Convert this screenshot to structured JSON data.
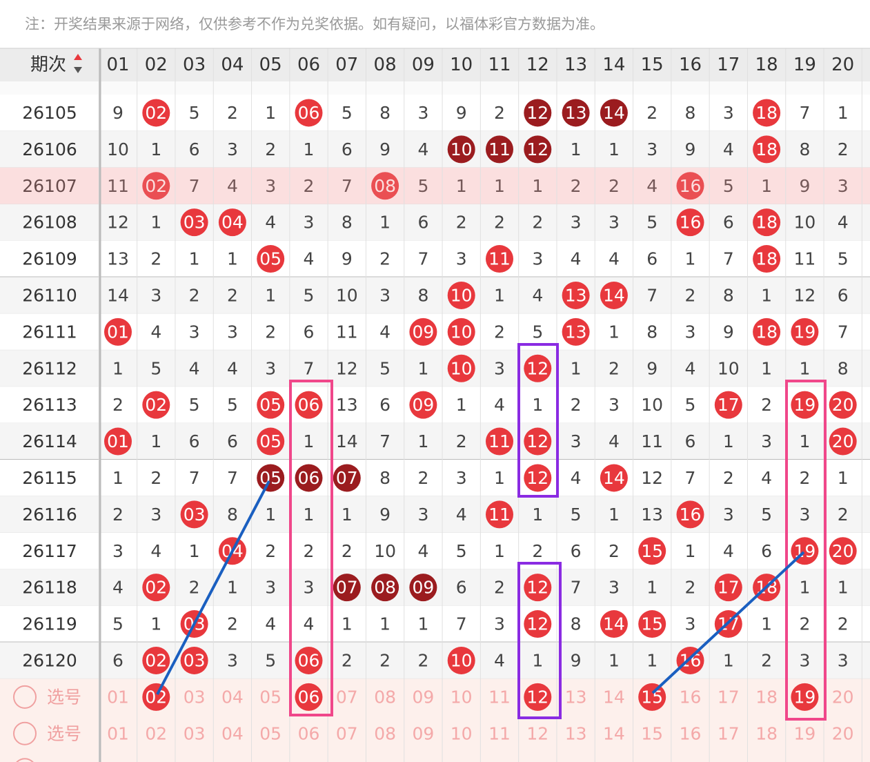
{
  "note": "注：开奖结果来源于网络，仅供参考不作为兑奖依据。如有疑问，以福体彩官方数据为准。",
  "header": {
    "issue": "期次",
    "columns": [
      "01",
      "02",
      "03",
      "04",
      "05",
      "06",
      "07",
      "08",
      "09",
      "10",
      "11",
      "12",
      "13",
      "14",
      "15",
      "16",
      "17",
      "18",
      "19",
      "20"
    ]
  },
  "rows": [
    {
      "issue": "26105",
      "cells": [
        "9",
        {
          "text": "02",
          "tone": "red"
        },
        "5",
        "2",
        "1",
        {
          "text": "06",
          "tone": "red"
        },
        "5",
        "8",
        "3",
        "9",
        "2",
        {
          "text": "12",
          "tone": "dark"
        },
        {
          "text": "13",
          "tone": "dark"
        },
        {
          "text": "14",
          "tone": "dark"
        },
        "2",
        "8",
        "3",
        {
          "text": "18",
          "tone": "red"
        },
        "7",
        "1"
      ]
    },
    {
      "issue": "26106",
      "cells": [
        "10",
        "1",
        "6",
        "3",
        "2",
        "1",
        "6",
        "9",
        "4",
        {
          "text": "10",
          "tone": "dark"
        },
        {
          "text": "11",
          "tone": "dark"
        },
        {
          "text": "12",
          "tone": "dark"
        },
        "1",
        "1",
        "3",
        "9",
        "4",
        {
          "text": "18",
          "tone": "red"
        },
        "8",
        "2"
      ]
    },
    {
      "issue": "26107",
      "highlighted": true,
      "cells": [
        "11",
        {
          "text": "02",
          "tone": "red"
        },
        "7",
        "4",
        "3",
        "2",
        "7",
        {
          "text": "08",
          "tone": "red"
        },
        "5",
        "1",
        "1",
        "1",
        "2",
        "2",
        "4",
        {
          "text": "16",
          "tone": "red"
        },
        "5",
        "1",
        "9",
        "3"
      ]
    },
    {
      "issue": "26108",
      "cells": [
        "12",
        "1",
        {
          "text": "03",
          "tone": "red"
        },
        {
          "text": "04",
          "tone": "red"
        },
        "4",
        "3",
        "8",
        "1",
        "6",
        "2",
        "2",
        "2",
        "3",
        "3",
        "5",
        {
          "text": "16",
          "tone": "red"
        },
        "6",
        {
          "text": "18",
          "tone": "red"
        },
        "10",
        "4"
      ]
    },
    {
      "issue": "26109",
      "cells": [
        "13",
        "2",
        "1",
        "1",
        {
          "text": "05",
          "tone": "red"
        },
        "4",
        "9",
        "2",
        "7",
        "3",
        {
          "text": "11",
          "tone": "red"
        },
        "3",
        "4",
        "4",
        "6",
        "1",
        "7",
        {
          "text": "18",
          "tone": "red"
        },
        "11",
        "5"
      ]
    },
    {
      "issue": "26110",
      "cells": [
        "14",
        "3",
        "2",
        "2",
        "1",
        "5",
        "10",
        "3",
        "8",
        {
          "text": "10",
          "tone": "red"
        },
        "1",
        "4",
        {
          "text": "13",
          "tone": "red"
        },
        {
          "text": "14",
          "tone": "red"
        },
        "7",
        "2",
        "8",
        "1",
        "12",
        "6"
      ]
    },
    {
      "issue": "26111",
      "cells": [
        {
          "text": "01",
          "tone": "red"
        },
        "4",
        "3",
        "3",
        "2",
        "6",
        "11",
        "4",
        {
          "text": "09",
          "tone": "red"
        },
        {
          "text": "10",
          "tone": "red"
        },
        "2",
        "5",
        {
          "text": "13",
          "tone": "red"
        },
        "1",
        "8",
        "3",
        "9",
        {
          "text": "18",
          "tone": "red"
        },
        {
          "text": "19",
          "tone": "red"
        },
        "7"
      ]
    },
    {
      "issue": "26112",
      "cells": [
        "1",
        "5",
        "4",
        "4",
        "3",
        "7",
        "12",
        "5",
        "1",
        {
          "text": "10",
          "tone": "red"
        },
        "3",
        {
          "text": "12",
          "tone": "red"
        },
        "1",
        "2",
        "9",
        "4",
        "10",
        "1",
        "1",
        "8"
      ]
    },
    {
      "issue": "26113",
      "cells": [
        "2",
        {
          "text": "02",
          "tone": "red"
        },
        "5",
        "5",
        {
          "text": "05",
          "tone": "red"
        },
        {
          "text": "06",
          "tone": "red"
        },
        "13",
        "6",
        {
          "text": "09",
          "tone": "red"
        },
        "1",
        "4",
        "1",
        "2",
        "3",
        "10",
        "5",
        {
          "text": "17",
          "tone": "red"
        },
        "2",
        {
          "text": "19",
          "tone": "red"
        },
        {
          "text": "20",
          "tone": "red"
        }
      ]
    },
    {
      "issue": "26114",
      "cells": [
        {
          "text": "01",
          "tone": "red"
        },
        "1",
        "6",
        "6",
        {
          "text": "05",
          "tone": "red"
        },
        "1",
        "14",
        "7",
        "1",
        "2",
        {
          "text": "11",
          "tone": "red"
        },
        {
          "text": "12",
          "tone": "red"
        },
        "3",
        "4",
        "11",
        "6",
        "1",
        "3",
        "1",
        {
          "text": "20",
          "tone": "red"
        }
      ]
    },
    {
      "issue": "26115",
      "cells": [
        "1",
        "2",
        "7",
        "7",
        {
          "text": "05",
          "tone": "dark"
        },
        {
          "text": "06",
          "tone": "dark"
        },
        {
          "text": "07",
          "tone": "dark"
        },
        "8",
        "2",
        "3",
        "1",
        {
          "text": "12",
          "tone": "red"
        },
        "4",
        {
          "text": "14",
          "tone": "red"
        },
        "12",
        "7",
        "2",
        "4",
        "2",
        "1"
      ]
    },
    {
      "issue": "26116",
      "cells": [
        "2",
        "3",
        {
          "text": "03",
          "tone": "red"
        },
        "8",
        "1",
        "1",
        "1",
        "9",
        "3",
        "4",
        {
          "text": "11",
          "tone": "red"
        },
        "1",
        "5",
        "1",
        "13",
        {
          "text": "16",
          "tone": "red"
        },
        "3",
        "5",
        "3",
        "2"
      ]
    },
    {
      "issue": "26117",
      "cells": [
        "3",
        "4",
        "1",
        {
          "text": "04",
          "tone": "red"
        },
        "2",
        "2",
        "2",
        "10",
        "4",
        "5",
        "1",
        "2",
        "6",
        "2",
        {
          "text": "15",
          "tone": "red"
        },
        "1",
        "4",
        "6",
        {
          "text": "19",
          "tone": "red"
        },
        {
          "text": "20",
          "tone": "red"
        }
      ]
    },
    {
      "issue": "26118",
      "cells": [
        "4",
        {
          "text": "02",
          "tone": "red"
        },
        "2",
        "1",
        "3",
        "3",
        {
          "text": "07",
          "tone": "dark"
        },
        {
          "text": "08",
          "tone": "dark"
        },
        {
          "text": "09",
          "tone": "dark"
        },
        "6",
        "2",
        {
          "text": "12",
          "tone": "red"
        },
        "7",
        "3",
        "1",
        "2",
        {
          "text": "17",
          "tone": "red"
        },
        {
          "text": "18",
          "tone": "red"
        },
        "1",
        "1"
      ]
    },
    {
      "issue": "26119",
      "cells": [
        "5",
        "1",
        {
          "text": "03",
          "tone": "red"
        },
        "2",
        "4",
        "4",
        "1",
        "1",
        "1",
        "7",
        "3",
        {
          "text": "12",
          "tone": "red"
        },
        "8",
        {
          "text": "14",
          "tone": "red"
        },
        {
          "text": "15",
          "tone": "red"
        },
        "3",
        {
          "text": "17",
          "tone": "red"
        },
        "1",
        "2",
        "2"
      ]
    },
    {
      "issue": "26120",
      "cells": [
        "6",
        {
          "text": "02",
          "tone": "red"
        },
        {
          "text": "03",
          "tone": "red"
        },
        "3",
        "5",
        {
          "text": "06",
          "tone": "red"
        },
        "2",
        "2",
        "2",
        {
          "text": "10",
          "tone": "red"
        },
        "4",
        "1",
        "9",
        "1",
        "1",
        {
          "text": "16",
          "tone": "red"
        },
        "1",
        "2",
        "3",
        "3"
      ]
    }
  ],
  "select_rows": [
    {
      "label": "选号",
      "cells": [
        "01",
        {
          "text": "02",
          "tone": "red"
        },
        "03",
        "04",
        "05",
        {
          "text": "06",
          "tone": "red"
        },
        "07",
        "08",
        "09",
        "10",
        "11",
        {
          "text": "12",
          "tone": "red"
        },
        "13",
        "14",
        {
          "text": "15",
          "tone": "red"
        },
        "16",
        "17",
        "18",
        {
          "text": "19",
          "tone": "red"
        },
        "20"
      ]
    },
    {
      "label": "选号",
      "cells": [
        "01",
        "02",
        "03",
        "04",
        "05",
        "06",
        "07",
        "08",
        "09",
        "10",
        "11",
        "12",
        "13",
        "14",
        "15",
        "16",
        "17",
        "18",
        "19",
        "20"
      ]
    }
  ]
}
